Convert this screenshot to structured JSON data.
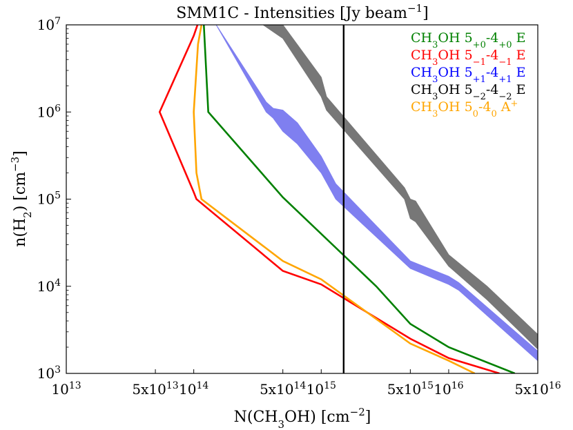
{
  "chart_data": {
    "type": "line",
    "title": {
      "base": "SMM1C - Intensities [Jy beam",
      "sup": "−1",
      "tail": "]"
    },
    "xlabel": {
      "pre": "N(CH",
      "sub": "3",
      "mid": "OH) [cm",
      "sup": "−2",
      "post": "]"
    },
    "ylabel": {
      "pre": "n(H",
      "sub": "2",
      "mid": ") [cm",
      "sup": "−3",
      "post": "]"
    },
    "xscale": "log",
    "yscale": "log",
    "xlim": [
      10000000000000.0,
      5e+16
    ],
    "ylim": [
      1000,
      10000000
    ],
    "xticks": [
      {
        "value": 10000000000000.0,
        "base": "10",
        "exp": "13"
      },
      {
        "value": 50000000000000.0,
        "base": "5x10",
        "exp": "13"
      },
      {
        "value": 100000000000000.0,
        "base": "10",
        "exp": "14"
      },
      {
        "value": 500000000000000.0,
        "base": "5x10",
        "exp": "14"
      },
      {
        "value": 1000000000000000.0,
        "base": "10",
        "exp": "15"
      },
      {
        "value": 5000000000000000.0,
        "base": "5x10",
        "exp": "15"
      },
      {
        "value": 1e+16,
        "base": "10",
        "exp": "16"
      },
      {
        "value": 5e+16,
        "base": "5x10",
        "exp": "16"
      }
    ],
    "yticks": [
      {
        "value": 1000,
        "base": "10",
        "exp": "3"
      },
      {
        "value": 10000,
        "base": "10",
        "exp": "4"
      },
      {
        "value": 100000,
        "base": "10",
        "exp": "5"
      },
      {
        "value": 1000000,
        "base": "10",
        "exp": "6"
      },
      {
        "value": 10000000,
        "base": "10",
        "exp": "7"
      }
    ],
    "vline": {
      "x": 1500000000000000.0,
      "color": "#000000"
    },
    "legend_position": "top-right",
    "series": [
      {
        "name": "CH3OH 5+0-4+0 E",
        "label": [
          [
            "CH",
            "n"
          ],
          [
            "3",
            "sub"
          ],
          [
            "OH 5",
            "n"
          ],
          [
            "+0",
            "sub"
          ],
          [
            "-4",
            "n"
          ],
          [
            "+0",
            "sub"
          ],
          [
            " E",
            "n"
          ]
        ],
        "kind": "line",
        "color": "#008000",
        "points": [
          [
            120000000000000.0,
            10000000.0
          ],
          [
            130000000000000.0,
            1000000.0
          ],
          [
            500000000000000.0,
            105000.0
          ],
          [
            2700000000000000.0,
            10000.0
          ],
          [
            5000000000000000.0,
            3700.0
          ],
          [
            1e+16,
            2000.0
          ],
          [
            3.3e+16,
            1000.0
          ]
        ]
      },
      {
        "name": "CH3OH 5-1-4-1 E",
        "label": [
          [
            "CH",
            "n"
          ],
          [
            "3",
            "sub"
          ],
          [
            "OH 5",
            "n"
          ],
          [
            "−1",
            "sub"
          ],
          [
            "-4",
            "n"
          ],
          [
            "−1",
            "sub"
          ],
          [
            " E",
            "n"
          ]
        ],
        "kind": "line",
        "color": "#ff0000",
        "points": [
          [
            107000000000000.0,
            10000000.0
          ],
          [
            100000000000000.0,
            7500000.0
          ],
          [
            54000000000000.0,
            1000000.0
          ],
          [
            100000000000000.0,
            120000.0
          ],
          [
            105000000000000.0,
            100000.0
          ],
          [
            500000000000000.0,
            15000.0
          ],
          [
            1000000000000000.0,
            10500.0
          ],
          [
            5000000000000000.0,
            2500.0
          ],
          [
            1e+16,
            1500.0
          ],
          [
            2.5e+16,
            1000.0
          ]
        ]
      },
      {
        "name": "CH3OH 5+1-4+1 E",
        "label": [
          [
            "CH",
            "n"
          ],
          [
            "3",
            "sub"
          ],
          [
            "OH 5",
            "n"
          ],
          [
            "+1",
            "sub"
          ],
          [
            "-4",
            "n"
          ],
          [
            "+1",
            "sub"
          ],
          [
            " E",
            "n"
          ]
        ],
        "kind": "band",
        "color": "#7f7ff0",
        "x": [
          150000000000000.0,
          370000000000000.0,
          420000000000000.0,
          500000000000000.0,
          650000000000000.0,
          1000000000000000.0,
          1300000000000000.0,
          5000000000000000.0,
          1e+16,
          1.2e+16,
          5e+16
        ],
        "lo": [
          10000000.0,
          1000000.0,
          850000.0,
          600000.0,
          430000.0,
          200000.0,
          100000.0,
          16000.0,
          10500.0,
          9000.0,
          1400.0
        ],
        "hi": [
          10000000.0,
          1300000.0,
          1100000.0,
          1050000.0,
          750000.0,
          310000.0,
          150000.0,
          19500.0,
          13000.0,
          11000.0,
          1800.0
        ]
      },
      {
        "name": "CH3OH 5-2-4-2 E",
        "label": [
          [
            "CH",
            "n"
          ],
          [
            "3",
            "sub"
          ],
          [
            "OH 5",
            "n"
          ],
          [
            "−2",
            "sub"
          ],
          [
            "-4",
            "n"
          ],
          [
            "−2",
            "sub"
          ],
          [
            " E",
            "n"
          ]
        ],
        "kind": "band",
        "color": "#777777",
        "x": [
          350000000000000.0,
          500000000000000.0,
          1000000000000000.0,
          1100000000000000.0,
          4500000000000000.0,
          5000000000000000.0,
          5500000000000000.0,
          1e+16,
          2e+16,
          5e+16
        ],
        "lo": [
          10000000.0,
          7000000.0,
          1500000.0,
          1050000.0,
          100000.0,
          60000.0,
          55000.0,
          17000.0,
          7000.0,
          1900.0
        ],
        "hi": [
          10000000.0,
          10000000.0,
          2500000.0,
          1500000.0,
          135000.0,
          100000.0,
          95000.0,
          23000.0,
          10000.0,
          2800.0
        ]
      },
      {
        "name": "CH3OH 50-40 A+",
        "label": [
          [
            "CH",
            "n"
          ],
          [
            "3",
            "sub"
          ],
          [
            "OH 5",
            "n"
          ],
          [
            "0",
            "sub"
          ],
          [
            "-4",
            "n"
          ],
          [
            "0",
            "sub"
          ],
          [
            " A",
            "n"
          ],
          [
            "+",
            "sup"
          ]
        ],
        "kind": "line",
        "color": "#ffa500",
        "points": [
          [
            115000000000000.0,
            10000000.0
          ],
          [
            108000000000000.0,
            6000000.0
          ],
          [
            100000000000000.0,
            1000000.0
          ],
          [
            105000000000000.0,
            200000.0
          ],
          [
            115000000000000.0,
            100000.0
          ],
          [
            500000000000000.0,
            19500.0
          ],
          [
            1000000000000000.0,
            12000.0
          ],
          [
            5000000000000000.0,
            2200.0
          ],
          [
            1e+16,
            1400.0
          ],
          [
            1.6e+16,
            1000.0
          ]
        ]
      }
    ]
  }
}
